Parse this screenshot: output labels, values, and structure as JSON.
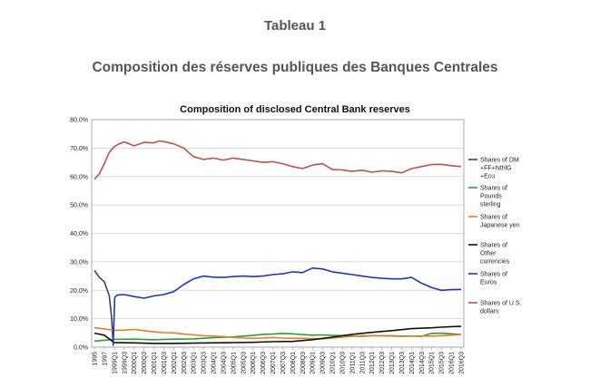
{
  "page": {
    "title": "Tableau 1",
    "subtitle": "Composition des réserves publiques des Banques Centrales"
  },
  "chart_data": {
    "type": "line",
    "title": "Composition of disclosed Central Bank reserves",
    "xlabel": "",
    "ylabel": "",
    "ylim": [
      0,
      80
    ],
    "y_ticks": [
      "0,0%",
      "10,0%",
      "20,0%",
      "30,0%",
      "40,0%",
      "50,0%",
      "60,0%",
      "70,0%",
      "80,0%"
    ],
    "grid": true,
    "legend_position": "right",
    "x_labels": [
      "1995",
      "1997",
      "1999Q1",
      "1999Q3",
      "2000Q1",
      "2000Q3",
      "2001Q1",
      "2001Q3",
      "2002Q1",
      "2002Q3",
      "2003Q1",
      "2003Q3",
      "2004Q1",
      "2004Q3",
      "2005Q1",
      "2005Q3",
      "2006Q1",
      "2006Q3",
      "2007Q1",
      "2007Q3",
      "2008Q1",
      "2008Q3",
      "2009Q1",
      "2009Q3",
      "2010Q1",
      "2010Q3",
      "2011Q1",
      "2011Q3",
      "2012Q1",
      "2012Q3",
      "2013Q1",
      "2013Q3",
      "2014Q1",
      "2014Q3",
      "2015Q1",
      "2015Q3",
      "2016Q1",
      "2016Q3"
    ],
    "series": [
      {
        "name": "Shares of DM +FF+NthlG +Ecu",
        "color": "#34495e",
        "points": [
          [
            0,
            27
          ],
          [
            0.5,
            24.5
          ],
          [
            1,
            23
          ],
          [
            1.5,
            18
          ],
          [
            1.75,
            10
          ],
          [
            1.9,
            0.5
          ]
        ]
      },
      {
        "name": "Shares of Pounds sterling",
        "color": "#2ca02c",
        "points": [
          [
            0,
            2.1
          ],
          [
            2,
            2.7
          ],
          [
            4,
            2.8
          ],
          [
            6,
            2.6
          ],
          [
            8,
            2.8
          ],
          [
            10,
            2.9
          ],
          [
            12,
            3.3
          ],
          [
            14,
            3.6
          ],
          [
            16,
            4.1
          ],
          [
            17,
            4.5
          ],
          [
            18,
            4.6
          ],
          [
            19,
            4.8
          ],
          [
            20,
            4.7
          ],
          [
            21,
            4.4
          ],
          [
            22,
            4.2
          ],
          [
            23,
            4.3
          ],
          [
            24,
            4.1
          ],
          [
            25,
            4.0
          ],
          [
            26,
            3.9
          ],
          [
            27,
            3.8
          ],
          [
            28,
            4.0
          ],
          [
            29,
            4.0
          ],
          [
            30,
            4.0
          ],
          [
            31,
            3.9
          ],
          [
            32,
            3.9
          ],
          [
            33,
            3.8
          ],
          [
            34,
            4.8
          ],
          [
            35,
            4.9
          ],
          [
            36,
            4.7
          ],
          [
            37,
            4.4
          ]
        ]
      },
      {
        "name": "Shares of Japanese yen",
        "color": "#e67e22",
        "points": [
          [
            0,
            6.8
          ],
          [
            1,
            6.4
          ],
          [
            2,
            5.9
          ],
          [
            3,
            6.0
          ],
          [
            4,
            6.2
          ],
          [
            5,
            5.8
          ],
          [
            6,
            5.4
          ],
          [
            7,
            5.1
          ],
          [
            8,
            5.0
          ],
          [
            9,
            4.6
          ],
          [
            10,
            4.3
          ],
          [
            11,
            4.0
          ],
          [
            12,
            3.9
          ],
          [
            13,
            3.7
          ],
          [
            14,
            3.4
          ],
          [
            15,
            3.2
          ],
          [
            16,
            3.1
          ],
          [
            17,
            3.2
          ],
          [
            18,
            3.4
          ],
          [
            19,
            3.2
          ],
          [
            20,
            3.1
          ],
          [
            21,
            3.1
          ],
          [
            22,
            3.0
          ],
          [
            23,
            2.9
          ],
          [
            24,
            3.2
          ],
          [
            25,
            3.5
          ],
          [
            26,
            3.8
          ],
          [
            27,
            4.0
          ],
          [
            28,
            4.0
          ],
          [
            29,
            4.0
          ],
          [
            30,
            3.9
          ],
          [
            31,
            3.8
          ],
          [
            32,
            3.9
          ],
          [
            33,
            3.9
          ],
          [
            34,
            3.9
          ],
          [
            35,
            4.0
          ],
          [
            36,
            4.2
          ],
          [
            37,
            4.4
          ]
        ]
      },
      {
        "name": "Shares of Other currencies",
        "color": "#111111",
        "points": [
          [
            0,
            4.9
          ],
          [
            1,
            4.2
          ],
          [
            2,
            1.6
          ],
          [
            4,
            1.5
          ],
          [
            6,
            1.3
          ],
          [
            8,
            1.3
          ],
          [
            10,
            1.4
          ],
          [
            12,
            1.5
          ],
          [
            14,
            1.6
          ],
          [
            16,
            1.7
          ],
          [
            18,
            1.9
          ],
          [
            20,
            2.0
          ],
          [
            22,
            2.6
          ],
          [
            24,
            3.5
          ],
          [
            26,
            4.5
          ],
          [
            28,
            5.2
          ],
          [
            30,
            5.8
          ],
          [
            32,
            6.5
          ],
          [
            34,
            6.8
          ],
          [
            35,
            7.0
          ],
          [
            36,
            7.2
          ],
          [
            37,
            7.3
          ]
        ]
      },
      {
        "name": "Shares of Euros",
        "color": "#2233cc",
        "points": [
          [
            1.9,
            0.5
          ],
          [
            2.05,
            17.5
          ],
          [
            2.3,
            18.3
          ],
          [
            3,
            18.5
          ],
          [
            4,
            17.8
          ],
          [
            5,
            17.2
          ],
          [
            6,
            18.0
          ],
          [
            7,
            18.5
          ],
          [
            8,
            19.5
          ],
          [
            9,
            22.0
          ],
          [
            10,
            24.0
          ],
          [
            11,
            25.0
          ],
          [
            12,
            24.6
          ],
          [
            13,
            24.5
          ],
          [
            14,
            24.8
          ],
          [
            15,
            25.0
          ],
          [
            16,
            24.8
          ],
          [
            17,
            25.0
          ],
          [
            18,
            25.5
          ],
          [
            19,
            25.8
          ],
          [
            20,
            26.5
          ],
          [
            21,
            26.2
          ],
          [
            22,
            27.8
          ],
          [
            23,
            27.5
          ],
          [
            24,
            26.5
          ],
          [
            25,
            26.0
          ],
          [
            26,
            25.5
          ],
          [
            27,
            25.0
          ],
          [
            28,
            24.5
          ],
          [
            29,
            24.2
          ],
          [
            30,
            24.0
          ],
          [
            31,
            24.0
          ],
          [
            32,
            24.5
          ],
          [
            33,
            22.5
          ],
          [
            34,
            21.0
          ],
          [
            35,
            20.0
          ],
          [
            36,
            20.2
          ],
          [
            37,
            20.3
          ]
        ]
      },
      {
        "name": "Shares of U.S. dollars",
        "color": "#c0504d",
        "points": [
          [
            0,
            59
          ],
          [
            0.5,
            61
          ],
          [
            1,
            64.5
          ],
          [
            1.5,
            68.5
          ],
          [
            2,
            70.5
          ],
          [
            2.5,
            71.5
          ],
          [
            3,
            72.2
          ],
          [
            4,
            70.8
          ],
          [
            5,
            72.0
          ],
          [
            6,
            71.8
          ],
          [
            6.5,
            72.5
          ],
          [
            7,
            72.3
          ],
          [
            8,
            71.5
          ],
          [
            9,
            70.0
          ],
          [
            10,
            67.0
          ],
          [
            11,
            66.0
          ],
          [
            12,
            66.5
          ],
          [
            13,
            65.8
          ],
          [
            14,
            66.5
          ],
          [
            15,
            66.0
          ],
          [
            16,
            65.5
          ],
          [
            17,
            65.0
          ],
          [
            18,
            65.2
          ],
          [
            19,
            64.5
          ],
          [
            20,
            63.5
          ],
          [
            21,
            62.8
          ],
          [
            22,
            64.0
          ],
          [
            23,
            64.5
          ],
          [
            24,
            62.5
          ],
          [
            25,
            62.3
          ],
          [
            26,
            61.8
          ],
          [
            27,
            62.2
          ],
          [
            28,
            61.5
          ],
          [
            29,
            62.0
          ],
          [
            30,
            61.8
          ],
          [
            31,
            61.3
          ],
          [
            32,
            62.8
          ],
          [
            33,
            63.5
          ],
          [
            34,
            64.2
          ],
          [
            35,
            64.3
          ],
          [
            36,
            63.8
          ],
          [
            37,
            63.5
          ]
        ]
      }
    ]
  }
}
